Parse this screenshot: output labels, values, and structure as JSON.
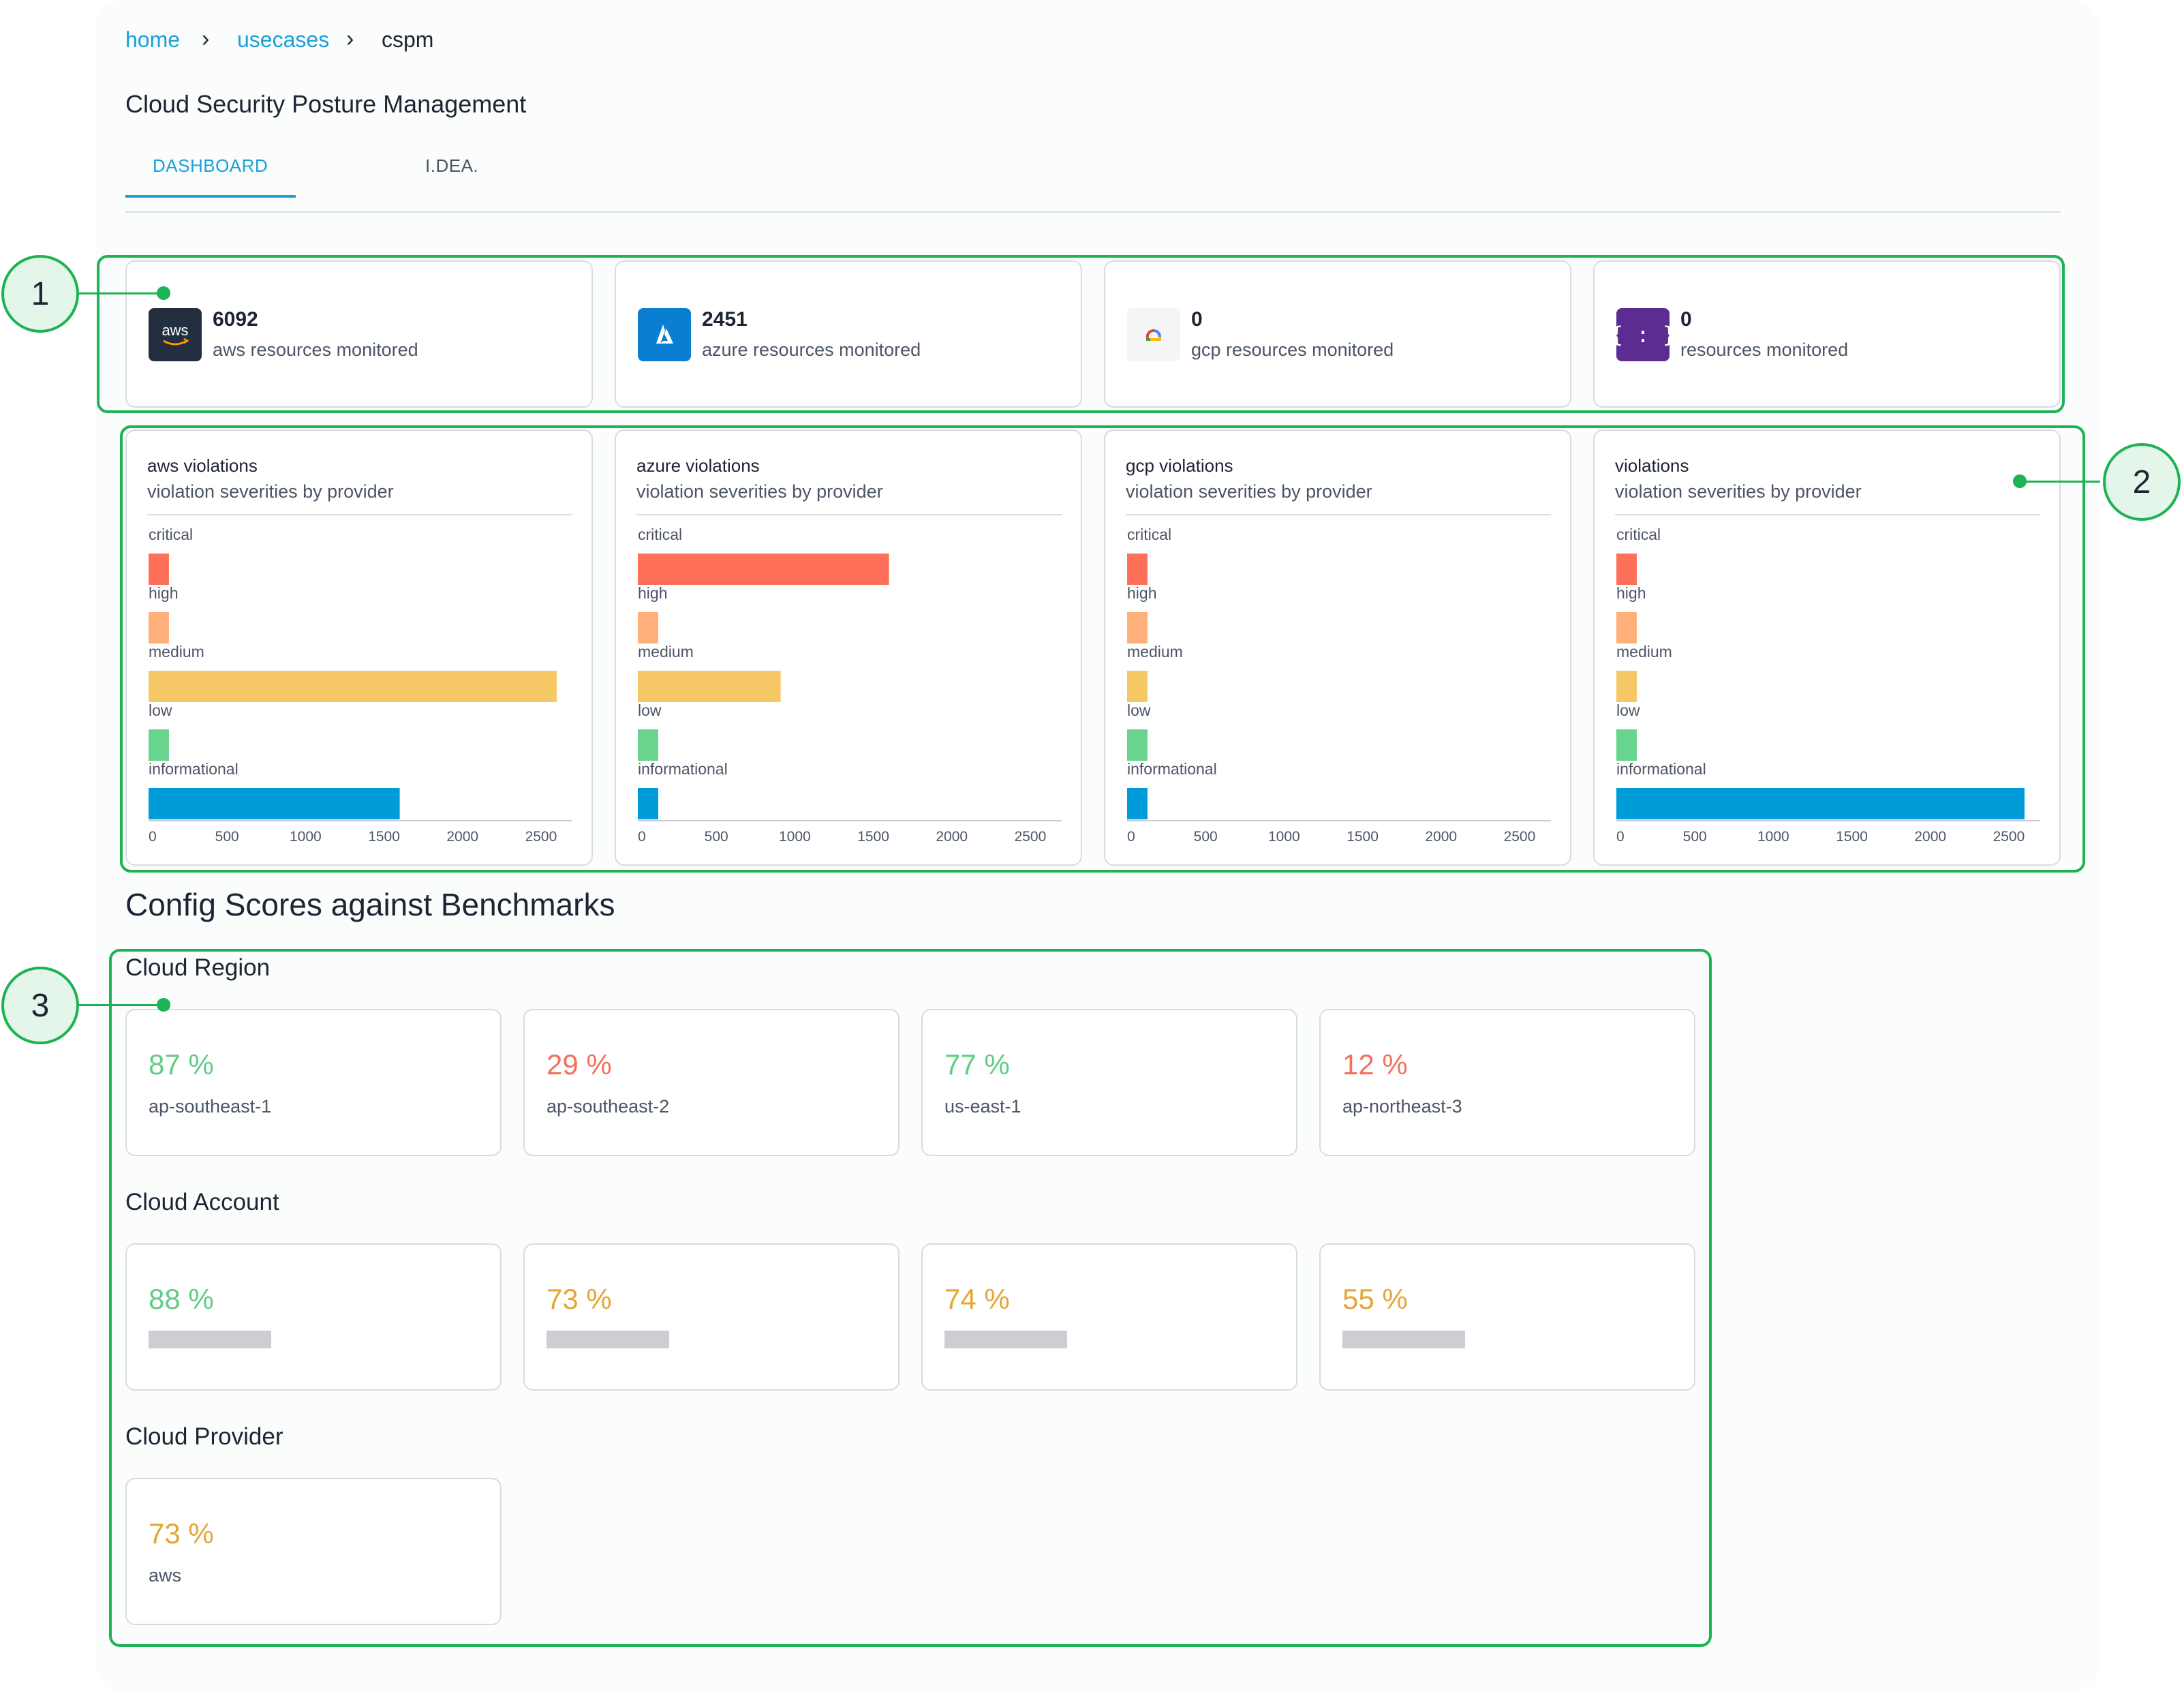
{
  "breadcrumb": {
    "home": "home",
    "usecases": "usecases",
    "current": "cspm",
    "separator": "›"
  },
  "page_title": "Cloud Security Posture Management",
  "tabs": [
    {
      "label": "DASHBOARD"
    },
    {
      "label": "I.DEA."
    }
  ],
  "resources": [
    {
      "count": "6092",
      "label": "aws resources monitored",
      "icon": "aws-logo-icon",
      "icon_text": "aws",
      "icon_color": "#232f3e"
    },
    {
      "count": "2451",
      "label": "azure resources monitored",
      "icon": "azure-logo-icon",
      "icon_color": "#0a7fd1"
    },
    {
      "count": "0",
      "label": "gcp resources monitored",
      "icon": "gcp-logo-icon",
      "icon_color": "#f4f5f7"
    },
    {
      "count": "0",
      "label": "resources monitored",
      "icon": "code-braces-icon",
      "icon_text": "{ : }",
      "icon_color": "#5b2d91"
    }
  ],
  "violations": [
    {
      "title": "aws violations",
      "subtitle": "violation severities by provider"
    },
    {
      "title": "azure violations",
      "subtitle": "violation severities by provider"
    },
    {
      "title": "gcp violations",
      "subtitle": "violation severities by provider"
    },
    {
      "title": "violations",
      "subtitle": "violation severities by provider"
    }
  ],
  "chart_data": [
    {
      "type": "bar",
      "orientation": "horizontal",
      "title": "aws violations",
      "categories": [
        "critical",
        "high",
        "medium",
        "low",
        "informational"
      ],
      "values": [
        130,
        130,
        2600,
        130,
        1600
      ],
      "xlim": [
        0,
        2700
      ],
      "xticks": [
        "0",
        "500",
        "1000",
        "1500",
        "2000",
        "2500"
      ]
    },
    {
      "type": "bar",
      "orientation": "horizontal",
      "title": "azure violations",
      "categories": [
        "critical",
        "high",
        "medium",
        "low",
        "informational"
      ],
      "values": [
        1600,
        130,
        910,
        130,
        130
      ],
      "xlim": [
        0,
        2700
      ],
      "xticks": [
        "0",
        "500",
        "1000",
        "1500",
        "2000",
        "2500"
      ]
    },
    {
      "type": "bar",
      "orientation": "horizontal",
      "title": "gcp violations",
      "categories": [
        "critical",
        "high",
        "medium",
        "low",
        "informational"
      ],
      "values": [
        130,
        130,
        130,
        130,
        130
      ],
      "xlim": [
        0,
        2700
      ],
      "xticks": [
        "0",
        "500",
        "1000",
        "1500",
        "2000",
        "2500"
      ]
    },
    {
      "type": "bar",
      "orientation": "horizontal",
      "title": "violations",
      "categories": [
        "critical",
        "high",
        "medium",
        "low",
        "informational"
      ],
      "values": [
        130,
        130,
        130,
        130,
        2600
      ],
      "xlim": [
        0,
        2700
      ],
      "xticks": [
        "0",
        "500",
        "1000",
        "1500",
        "2000",
        "2500"
      ]
    }
  ],
  "severity_colors": [
    "#ff705a",
    "#ffb07a",
    "#f6c865",
    "#68d48e",
    "#009bd9"
  ],
  "config_scores": {
    "heading": "Config Scores against Benchmarks",
    "cloud_region": {
      "heading": "Cloud Region",
      "items": [
        {
          "value": "87 %",
          "label": "ap-southeast-1",
          "color": "#5fcc86"
        },
        {
          "value": "29 %",
          "label": "ap-southeast-2",
          "color": "#f3705b"
        },
        {
          "value": "77 %",
          "label": "us-east-1",
          "color": "#5fcc86"
        },
        {
          "value": "12 %",
          "label": "ap-northeast-3",
          "color": "#f3705b"
        }
      ]
    },
    "cloud_account": {
      "heading": "Cloud Account",
      "items": [
        {
          "value": "88 %",
          "color": "#5fcc86"
        },
        {
          "value": "73 %",
          "color": "#e4a634"
        },
        {
          "value": "74 %",
          "color": "#e4a634"
        },
        {
          "value": "55 %",
          "color": "#e4a634"
        }
      ]
    },
    "cloud_provider": {
      "heading": "Cloud Provider",
      "items": [
        {
          "value": "73 %",
          "label": "aws",
          "color": "#e4a634"
        }
      ]
    }
  },
  "callouts": [
    "1",
    "2",
    "3"
  ]
}
